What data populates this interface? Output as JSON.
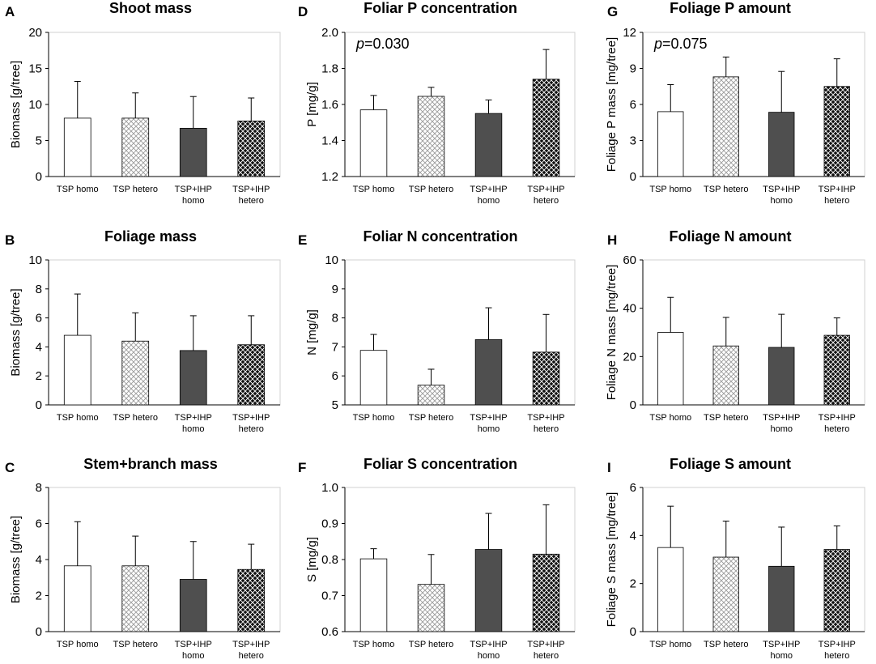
{
  "chart_data": [
    {
      "panel": "A",
      "type": "bar",
      "title": "Shoot mass",
      "ylabel": "Biomass [g/tree]",
      "categories": [
        [
          "TSP homo"
        ],
        [
          "TSP hetero"
        ],
        [
          "TSP+IHP",
          "homo"
        ],
        [
          "TSP+IHP",
          "hetero"
        ]
      ],
      "values": [
        8.1,
        8.1,
        6.7,
        7.7
      ],
      "errors": [
        5.1,
        3.5,
        4.4,
        3.2
      ],
      "patterns": [
        "white",
        "light-crosshatch",
        "dark",
        "black-crosshatch"
      ],
      "ylim": [
        0,
        20
      ],
      "yticks": [
        "0",
        "5",
        "10",
        "15",
        "20"
      ],
      "annotation": ""
    },
    {
      "panel": "B",
      "type": "bar",
      "title": "Foliage mass",
      "ylabel": "Biomass [g/tree]",
      "categories": [
        [
          "TSP homo"
        ],
        [
          "TSP hetero"
        ],
        [
          "TSP+IHP",
          "homo"
        ],
        [
          "TSP+IHP",
          "hetero"
        ]
      ],
      "values": [
        4.8,
        4.4,
        3.75,
        4.15
      ],
      "errors": [
        2.85,
        1.95,
        2.4,
        2.0
      ],
      "patterns": [
        "white",
        "light-crosshatch",
        "dark",
        "black-crosshatch"
      ],
      "ylim": [
        0,
        10
      ],
      "yticks": [
        "0",
        "2",
        "4",
        "6",
        "8",
        "10"
      ],
      "annotation": ""
    },
    {
      "panel": "C",
      "type": "bar",
      "title": "Stem+branch mass",
      "ylabel": "Biomass [g/tree]",
      "categories": [
        [
          "TSP homo"
        ],
        [
          "TSP hetero"
        ],
        [
          "TSP+IHP",
          "homo"
        ],
        [
          "TSP+IHP",
          "hetero"
        ]
      ],
      "values": [
        3.65,
        3.65,
        2.9,
        3.45
      ],
      "errors": [
        2.45,
        1.65,
        2.1,
        1.4
      ],
      "patterns": [
        "white",
        "light-crosshatch",
        "dark",
        "black-crosshatch"
      ],
      "ylim": [
        0,
        8
      ],
      "yticks": [
        "0",
        "2",
        "4",
        "6",
        "8"
      ],
      "annotation": ""
    },
    {
      "panel": "D",
      "type": "bar",
      "title": "Foliar P concentration",
      "ylabel": "P  [mg/g]",
      "categories": [
        [
          "TSP homo"
        ],
        [
          "TSP hetero"
        ],
        [
          "TSP+IHP",
          "homo"
        ],
        [
          "TSP+IHP",
          "hetero"
        ]
      ],
      "values": [
        1.57,
        1.645,
        1.55,
        1.74
      ],
      "errors": [
        0.08,
        0.05,
        0.075,
        0.165
      ],
      "patterns": [
        "white",
        "light-crosshatch",
        "dark",
        "black-crosshatch"
      ],
      "ylim": [
        1.2,
        2.0
      ],
      "yticks": [
        "1.2",
        "1.4",
        "1.6",
        "1.8",
        "2.0"
      ],
      "annotation": {
        "p": "p",
        "value": "=0.030"
      }
    },
    {
      "panel": "E",
      "type": "bar",
      "title": "Foliar N concentration",
      "ylabel": "N  [mg/g]",
      "categories": [
        [
          "TSP homo"
        ],
        [
          "TSP hetero"
        ],
        [
          "TSP+IHP",
          "homo"
        ],
        [
          "TSP+IHP",
          "hetero"
        ]
      ],
      "values": [
        6.88,
        5.68,
        7.25,
        6.82
      ],
      "errors": [
        0.55,
        0.55,
        1.1,
        1.3
      ],
      "patterns": [
        "white",
        "light-crosshatch",
        "dark",
        "black-crosshatch"
      ],
      "ylim": [
        5,
        10
      ],
      "yticks": [
        "5",
        "6",
        "7",
        "8",
        "9",
        "10"
      ],
      "annotation": ""
    },
    {
      "panel": "F",
      "type": "bar",
      "title": "Foliar S concentration",
      "ylabel": "S  [mg/g]",
      "categories": [
        [
          "TSP homo"
        ],
        [
          "TSP hetero"
        ],
        [
          "TSP+IHP",
          "homo"
        ],
        [
          "TSP+IHP",
          "hetero"
        ]
      ],
      "values": [
        0.802,
        0.731,
        0.828,
        0.815
      ],
      "errors": [
        0.028,
        0.083,
        0.1,
        0.137
      ],
      "patterns": [
        "white",
        "light-crosshatch",
        "dark",
        "black-crosshatch"
      ],
      "ylim": [
        0.6,
        1.0
      ],
      "yticks": [
        "0.6",
        "0.7",
        "0.8",
        "0.9",
        "1.0"
      ],
      "annotation": ""
    },
    {
      "panel": "G",
      "type": "bar",
      "title": "Foliage P amount",
      "ylabel": "Foliage P mass [mg/tree]",
      "categories": [
        [
          "TSP homo"
        ],
        [
          "TSP hetero"
        ],
        [
          "TSP+IHP",
          "homo"
        ],
        [
          "TSP+IHP",
          "hetero"
        ]
      ],
      "values": [
        5.4,
        8.3,
        5.35,
        7.5
      ],
      "errors": [
        2.25,
        1.65,
        3.4,
        2.3
      ],
      "patterns": [
        "white",
        "light-crosshatch",
        "dark",
        "black-crosshatch"
      ],
      "ylim": [
        0,
        12
      ],
      "yticks": [
        "0",
        "3",
        "6",
        "9",
        "12"
      ],
      "annotation": {
        "p": "p",
        "value": "=0.075"
      }
    },
    {
      "panel": "H",
      "type": "bar",
      "title": "Foliage N amount",
      "ylabel": "Foliage N mass [mg/tree]",
      "categories": [
        [
          "TSP homo"
        ],
        [
          "TSP hetero"
        ],
        [
          "TSP+IHP",
          "homo"
        ],
        [
          "TSP+IHP",
          "hetero"
        ]
      ],
      "values": [
        30,
        24.4,
        23.8,
        28.8
      ],
      "errors": [
        14.5,
        11.8,
        13.7,
        7.2
      ],
      "patterns": [
        "white",
        "light-crosshatch",
        "dark",
        "black-crosshatch"
      ],
      "ylim": [
        0,
        60
      ],
      "yticks": [
        "0",
        "20",
        "40",
        "60"
      ],
      "annotation": ""
    },
    {
      "panel": "I",
      "type": "bar",
      "title": "Foliage S amount",
      "ylabel": "Foliage S mass  [mg/tree]",
      "categories": [
        [
          "TSP homo"
        ],
        [
          "TSP hetero"
        ],
        [
          "TSP+IHP",
          "homo"
        ],
        [
          "TSP+IHP",
          "hetero"
        ]
      ],
      "values": [
        3.5,
        3.1,
        2.72,
        3.42
      ],
      "errors": [
        1.72,
        1.5,
        1.63,
        0.98
      ],
      "patterns": [
        "white",
        "light-crosshatch",
        "dark",
        "black-crosshatch"
      ],
      "ylim": [
        0,
        6
      ],
      "yticks": [
        "0",
        "2",
        "4",
        "6"
      ],
      "annotation": ""
    }
  ],
  "colors": {
    "dark_bar": "#4f4f4f",
    "black_hatch_fill": "#111111",
    "light_hatch_line": "#9a9a9a",
    "axis": "#000000",
    "frame": "#d0d0d0"
  }
}
